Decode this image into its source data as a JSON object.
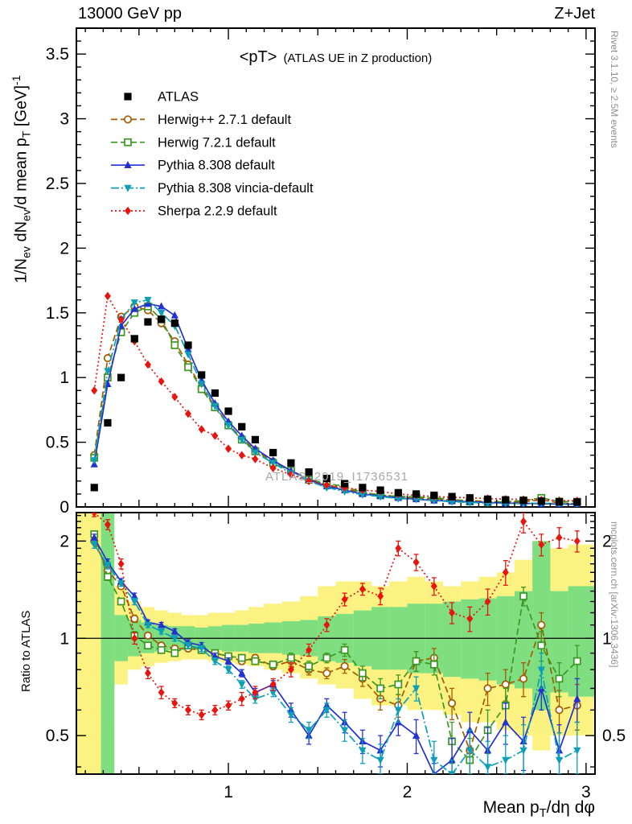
{
  "header": {
    "left": "13000 GeV pp",
    "right": "Z+Jet"
  },
  "side_notes": {
    "top": "Rivet 3.1.10, ≥ 2.5M events",
    "bottom": "mcplots.cern.ch [arXiv:1306.3436]",
    "color": "#8f8f8f"
  },
  "watermark": {
    "text": "ATLAS_2019_I1736531",
    "color": "#a8a8a8"
  },
  "chart_data": {
    "type": "line",
    "title": "<pT>",
    "subtitle": "(ATLAS UE in Z production)",
    "xlabel": "Mean p_{T}/dη dφ",
    "ylabel": "1/N_{ev} dN_{ev}/d mean p_{T} [GeV]^{-1}",
    "ratio_ylabel": "Ratio to ATLAS",
    "legend_position": "top-left",
    "grid": false,
    "x_range": [
      0.15,
      3.05
    ],
    "y_range": [
      0,
      3.7
    ],
    "ratio_range": [
      0.38,
      2.45
    ],
    "ratio_scale": "log",
    "x_major_ticks": [
      1,
      2,
      3
    ],
    "y_major_ticks": [
      0,
      0.5,
      1,
      1.5,
      2,
      2.5,
      3,
      3.5
    ],
    "ratio_ticks": [
      0.5,
      1,
      2
    ],
    "x": [
      0.25,
      0.325,
      0.4,
      0.475,
      0.55,
      0.625,
      0.7,
      0.775,
      0.85,
      0.925,
      1.0,
      1.075,
      1.15,
      1.25,
      1.35,
      1.45,
      1.55,
      1.65,
      1.75,
      1.85,
      1.95,
      2.05,
      2.15,
      2.25,
      2.35,
      2.45,
      2.55,
      2.65,
      2.75,
      2.85,
      2.95
    ],
    "data_series": {
      "name": "ATLAS",
      "color": "#000000",
      "marker": "square-filled",
      "values": [
        0.15,
        0.65,
        1.0,
        1.3,
        1.43,
        1.45,
        1.42,
        1.25,
        1.02,
        0.88,
        0.74,
        0.62,
        0.52,
        0.42,
        0.34,
        0.27,
        0.22,
        0.18,
        0.15,
        0.13,
        0.11,
        0.1,
        0.09,
        0.08,
        0.07,
        0.06,
        0.055,
        0.05,
        0.045,
        0.04,
        0.038
      ],
      "errors": [
        0.01,
        0.02,
        0.02,
        0.02,
        0.02,
        0.02,
        0.02,
        0.02,
        0.02,
        0.02,
        0.02,
        0.02,
        0.02,
        0.015,
        0.012,
        0.01,
        0.01,
        0.01,
        0.008,
        0.008,
        0.007,
        0.007,
        0.006,
        0.006,
        0.005,
        0.005,
        0.005,
        0.004,
        0.004,
        0.004,
        0.004
      ]
    },
    "series": [
      {
        "name": "Herwig++ 2.7.1 default",
        "color": "#a35a00",
        "marker": "circle-open",
        "line": "dashed",
        "values": [
          0.4,
          1.15,
          1.47,
          1.55,
          1.52,
          1.42,
          1.28,
          1.1,
          0.92,
          0.78,
          0.64,
          0.53,
          0.44,
          0.35,
          0.28,
          0.22,
          0.17,
          0.14,
          0.11,
          0.095,
          0.08,
          0.07,
          0.062,
          0.055,
          0.05,
          0.042,
          0.038,
          0.04,
          0.055,
          0.03,
          0.025
        ],
        "ratio": [
          2.0,
          1.62,
          1.45,
          1.15,
          1.02,
          0.95,
          0.93,
          0.93,
          0.92,
          0.9,
          0.88,
          0.85,
          0.87,
          0.82,
          0.85,
          0.8,
          0.78,
          0.82,
          0.75,
          0.65,
          0.62,
          0.85,
          0.87,
          0.63,
          0.45,
          0.7,
          0.72,
          0.75,
          1.1,
          0.6,
          0.62
        ],
        "ratio_err": [
          0.05,
          0.04,
          0.03,
          0.03,
          0.02,
          0.02,
          0.02,
          0.02,
          0.02,
          0.02,
          0.02,
          0.02,
          0.02,
          0.02,
          0.03,
          0.03,
          0.03,
          0.04,
          0.04,
          0.05,
          0.05,
          0.06,
          0.06,
          0.07,
          0.07,
          0.08,
          0.08,
          0.09,
          0.1,
          0.09,
          0.1
        ]
      },
      {
        "name": "Herwig 7.2.1 default",
        "color": "#3c9624",
        "marker": "square-open",
        "line": "dashed",
        "values": [
          0.38,
          1.0,
          1.35,
          1.5,
          1.55,
          1.45,
          1.25,
          1.08,
          0.91,
          0.77,
          0.63,
          0.52,
          0.43,
          0.34,
          0.28,
          0.21,
          0.18,
          0.16,
          0.11,
          0.09,
          0.082,
          0.078,
          0.07,
          0.06,
          0.042,
          0.035,
          0.04,
          0.05,
          0.07,
          0.042,
          0.04
        ],
        "ratio": [
          2.1,
          1.55,
          1.3,
          1.02,
          0.95,
          0.92,
          0.9,
          0.95,
          0.92,
          0.9,
          0.88,
          0.87,
          0.85,
          0.83,
          0.87,
          0.82,
          0.87,
          0.92,
          0.78,
          0.7,
          0.72,
          0.85,
          0.83,
          0.48,
          0.42,
          0.52,
          0.62,
          1.35,
          0.95,
          0.75,
          0.85
        ],
        "ratio_err": [
          0.05,
          0.04,
          0.03,
          0.03,
          0.02,
          0.02,
          0.02,
          0.02,
          0.02,
          0.02,
          0.02,
          0.02,
          0.02,
          0.02,
          0.03,
          0.03,
          0.03,
          0.04,
          0.04,
          0.05,
          0.05,
          0.06,
          0.06,
          0.07,
          0.07,
          0.08,
          0.08,
          0.09,
          0.1,
          0.09,
          0.1
        ]
      },
      {
        "name": "Pythia 8.308 default",
        "color": "#2331d0",
        "marker": "triangle-up-filled",
        "line": "solid",
        "values": [
          0.33,
          0.95,
          1.4,
          1.53,
          1.57,
          1.55,
          1.48,
          1.22,
          0.98,
          0.8,
          0.66,
          0.55,
          0.45,
          0.36,
          0.28,
          0.21,
          0.16,
          0.13,
          0.1,
          0.085,
          0.07,
          0.06,
          0.05,
          0.045,
          0.04,
          0.035,
          0.03,
          0.028,
          0.025,
          0.022,
          0.02
        ],
        "ratio": [
          2.05,
          1.72,
          1.5,
          1.35,
          1.12,
          1.1,
          1.05,
          0.97,
          0.95,
          0.88,
          0.85,
          0.78,
          0.68,
          0.72,
          0.6,
          0.5,
          0.62,
          0.55,
          0.48,
          0.45,
          0.55,
          0.5,
          0.35,
          0.42,
          0.52,
          0.45,
          0.55,
          0.48,
          0.7,
          0.45,
          0.65
        ],
        "ratio_err": [
          0.05,
          0.04,
          0.03,
          0.03,
          0.02,
          0.02,
          0.02,
          0.02,
          0.02,
          0.02,
          0.02,
          0.02,
          0.02,
          0.02,
          0.03,
          0.03,
          0.03,
          0.04,
          0.04,
          0.05,
          0.05,
          0.06,
          0.06,
          0.07,
          0.07,
          0.08,
          0.08,
          0.09,
          0.1,
          0.09,
          0.1
        ]
      },
      {
        "name": "Pythia 8.308 vincia-default",
        "color": "#0c9fb5",
        "marker": "triangle-down-filled",
        "line": "dashdot",
        "values": [
          0.36,
          1.05,
          1.45,
          1.58,
          1.6,
          1.5,
          1.4,
          1.18,
          0.95,
          0.78,
          0.63,
          0.52,
          0.42,
          0.34,
          0.26,
          0.2,
          0.15,
          0.12,
          0.095,
          0.08,
          0.065,
          0.06,
          0.05,
          0.04,
          0.035,
          0.03,
          0.028,
          0.026,
          0.03,
          0.024,
          0.022
        ],
        "ratio": [
          1.95,
          1.68,
          1.48,
          1.3,
          1.1,
          1.05,
          1.0,
          0.95,
          0.93,
          0.85,
          0.8,
          0.72,
          0.65,
          0.68,
          0.58,
          0.52,
          0.6,
          0.52,
          0.45,
          0.42,
          0.6,
          0.7,
          0.42,
          0.35,
          0.45,
          0.4,
          0.42,
          0.45,
          0.8,
          0.42,
          0.45
        ],
        "ratio_err": [
          0.05,
          0.04,
          0.03,
          0.03,
          0.02,
          0.02,
          0.02,
          0.02,
          0.02,
          0.02,
          0.02,
          0.02,
          0.02,
          0.02,
          0.03,
          0.03,
          0.03,
          0.04,
          0.04,
          0.05,
          0.05,
          0.06,
          0.06,
          0.07,
          0.07,
          0.08,
          0.08,
          0.09,
          0.1,
          0.09,
          0.1
        ]
      },
      {
        "name": "Sherpa 2.2.9 default",
        "color": "#e8150f",
        "marker": "diamond-filled",
        "line": "dotted",
        "values": [
          0.9,
          1.63,
          1.45,
          1.28,
          1.1,
          0.97,
          0.85,
          0.72,
          0.6,
          0.55,
          0.45,
          0.4,
          0.37,
          0.3,
          0.25,
          0.2,
          0.17,
          0.15,
          0.13,
          0.12,
          0.1,
          0.09,
          0.08,
          0.075,
          0.07,
          0.065,
          0.06,
          0.058,
          0.055,
          0.05,
          0.048
        ],
        "ratio": [
          2.5,
          2.25,
          1.7,
          1.0,
          0.78,
          0.68,
          0.63,
          0.6,
          0.58,
          0.6,
          0.62,
          0.65,
          0.68,
          0.72,
          0.8,
          0.92,
          1.1,
          1.32,
          1.42,
          1.35,
          1.9,
          1.72,
          1.45,
          1.2,
          1.15,
          1.3,
          1.6,
          2.3,
          1.95,
          2.05,
          2.0
        ],
        "ratio_err": [
          0.12,
          0.08,
          0.06,
          0.04,
          0.03,
          0.03,
          0.02,
          0.02,
          0.02,
          0.02,
          0.02,
          0.03,
          0.03,
          0.03,
          0.04,
          0.04,
          0.05,
          0.06,
          0.06,
          0.08,
          0.1,
          0.1,
          0.09,
          0.09,
          0.1,
          0.12,
          0.14,
          0.18,
          0.15,
          0.15,
          0.15
        ]
      }
    ],
    "bands": {
      "yellow_color": "#fbf282",
      "green_color": "#7fdf80",
      "yellow_lo": [
        0.3,
        0.55,
        0.72,
        0.8,
        0.82,
        0.84,
        0.85,
        0.86,
        0.86,
        0.85,
        0.84,
        0.83,
        0.82,
        0.8,
        0.78,
        0.75,
        0.72,
        0.7,
        0.65,
        0.62,
        0.62,
        0.6,
        0.6,
        0.58,
        0.55,
        0.55,
        0.52,
        0.5,
        0.45,
        0.5,
        0.5
      ],
      "yellow_hi": [
        2.5,
        1.6,
        1.45,
        1.3,
        1.25,
        1.22,
        1.2,
        1.18,
        1.18,
        1.2,
        1.2,
        1.22,
        1.25,
        1.28,
        1.3,
        1.35,
        1.45,
        1.5,
        1.5,
        1.45,
        1.5,
        1.55,
        1.5,
        1.45,
        1.5,
        1.55,
        1.6,
        1.75,
        2.0,
        1.9,
        1.95
      ],
      "green_lo": [
        1.0,
        0.3,
        0.85,
        0.88,
        0.9,
        0.91,
        0.92,
        0.92,
        0.92,
        0.92,
        0.91,
        0.91,
        0.9,
        0.9,
        0.89,
        0.88,
        0.85,
        0.84,
        0.82,
        0.8,
        0.8,
        0.78,
        0.78,
        0.76,
        0.75,
        0.74,
        0.72,
        0.7,
        0.6,
        0.68,
        0.66
      ],
      "green_hi": [
        1.0,
        2.5,
        1.18,
        1.14,
        1.12,
        1.1,
        1.09,
        1.09,
        1.08,
        1.09,
        1.1,
        1.1,
        1.11,
        1.12,
        1.13,
        1.14,
        1.17,
        1.19,
        1.22,
        1.25,
        1.25,
        1.28,
        1.28,
        1.3,
        1.32,
        1.33,
        1.35,
        1.4,
        2.0,
        1.4,
        1.45
      ]
    }
  }
}
